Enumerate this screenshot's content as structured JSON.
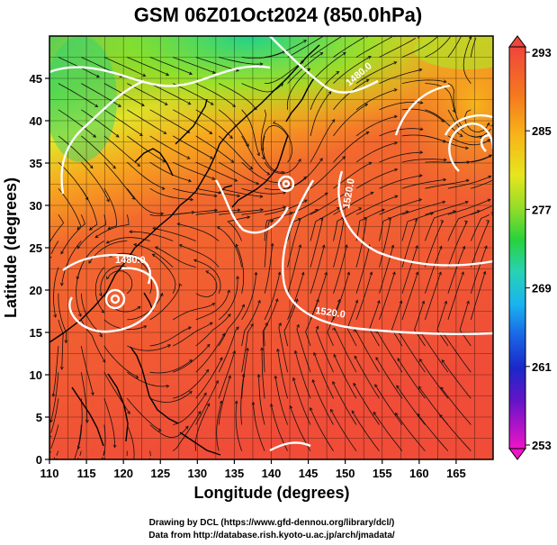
{
  "title": "GSM 06Z01Oct2024 (850.0hPa)",
  "xlabel": "Longitude (degrees)",
  "ylabel": "Latitude  (degrees)",
  "x_ticks": [
    "110",
    "115",
    "120",
    "125",
    "130",
    "135",
    "140",
    "145",
    "150",
    "155",
    "160",
    "165"
  ],
  "y_ticks": [
    "0",
    "5",
    "10",
    "15",
    "20",
    "25",
    "30",
    "35",
    "40",
    "45"
  ],
  "colorbar": {
    "ticks": [
      "293",
      "285",
      "277",
      "269",
      "261",
      "253"
    ],
    "colors": [
      "#f0463c",
      "#f57a1e",
      "#f7a41a",
      "#f7d21a",
      "#b4e628",
      "#3cd23c",
      "#2ad4b4",
      "#1aa8f0",
      "#1a5ae6",
      "#1a1ab4",
      "#7a1ad2",
      "#d21ab4",
      "#f01ac8"
    ]
  },
  "contour_labels": [
    "1480.0",
    "1520.0",
    "1520.0",
    "1480.0"
  ],
  "map": {
    "lon_range": [
      110,
      170
    ],
    "lat_range": [
      0,
      50
    ],
    "colors": {
      "warm": "#f0503a",
      "orange": "#f58a28",
      "yellow": "#e6e628",
      "green": "#3cd23c",
      "cyan": "#2ad4b4",
      "coast": "#000000",
      "contour": "#ffffff"
    }
  },
  "footer": {
    "line1": "Drawing by DCL (https://www.gfd-dennou.org/library/dcl/)",
    "line2": "Data from http://database.rish.kyoto-u.ac.jp/arch/jmadata/"
  }
}
